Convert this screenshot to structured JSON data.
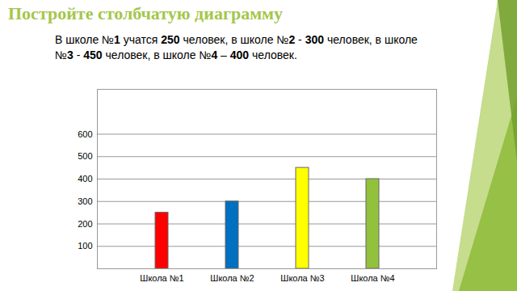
{
  "chart_data": {
    "type": "bar",
    "title": "Постройте столбчатую диаграмму",
    "subtitle": "В школе №1 учатся 250 человек, в школе №2 - 300 человек, в школе №3  - 450 человек, в школе №4 – 400 человек.",
    "categories": [
      "Школа №1",
      "Школа №2",
      "Школа №3",
      "Школа №4"
    ],
    "values": [
      250,
      300,
      450,
      400
    ],
    "colors": [
      "#ff0000",
      "#0070c0",
      "#ffff00",
      "#92c13c"
    ],
    "ylim": [
      0,
      800
    ],
    "yticks": [
      100,
      200,
      300,
      400,
      500,
      600
    ],
    "grid": true
  }
}
